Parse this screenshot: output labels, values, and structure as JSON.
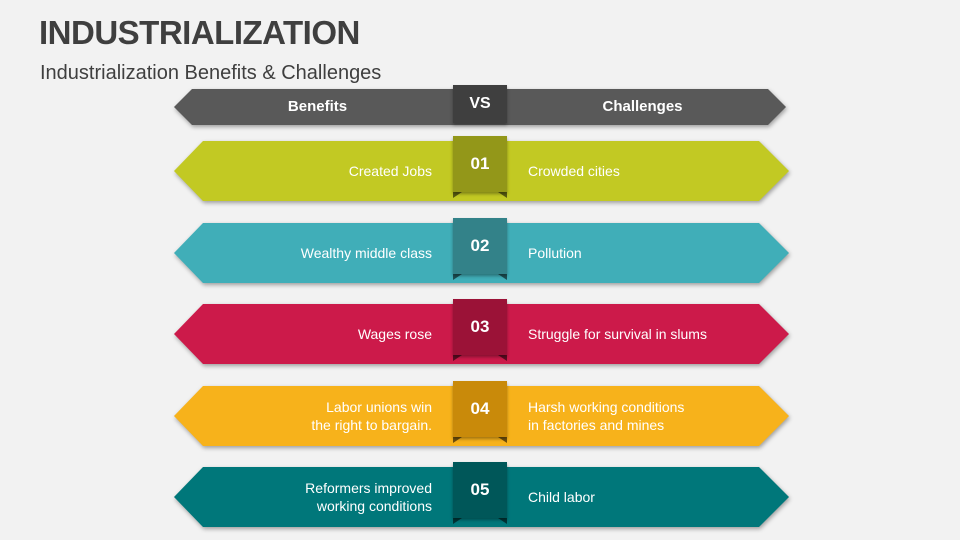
{
  "slide": {
    "title": "INDUSTRIALIZATION",
    "subtitle": "Industrialization Benefits & Challenges"
  },
  "header": {
    "left_label": "Benefits",
    "badge": "VS",
    "right_label": "Challenges",
    "color": "#595959",
    "badge_color": "#3f3f3f"
  },
  "rows": [
    {
      "number": "01",
      "benefit": "Created Jobs",
      "challenge": "Crowded cities",
      "color": "#c2c923",
      "badge_color": "#939719"
    },
    {
      "number": "02",
      "benefit": "Wealthy middle class",
      "challenge": "Pollution",
      "color": "#40aeb8",
      "badge_color": "#338289"
    },
    {
      "number": "03",
      "benefit": "Wages rose",
      "challenge": "Struggle for survival in slums",
      "color": "#cc1a4a",
      "badge_color": "#9b1237"
    },
    {
      "number": "04",
      "benefit": "Labor unions win\nthe right to bargain.",
      "challenge": "Harsh working conditions\nin factories and mines",
      "color": "#f7b21b",
      "badge_color": "#c98a0a"
    },
    {
      "number": "05",
      "benefit": "Reformers improved\nworking conditions",
      "challenge": "Child labor",
      "color": "#00777a",
      "badge_color": "#005759"
    }
  ]
}
